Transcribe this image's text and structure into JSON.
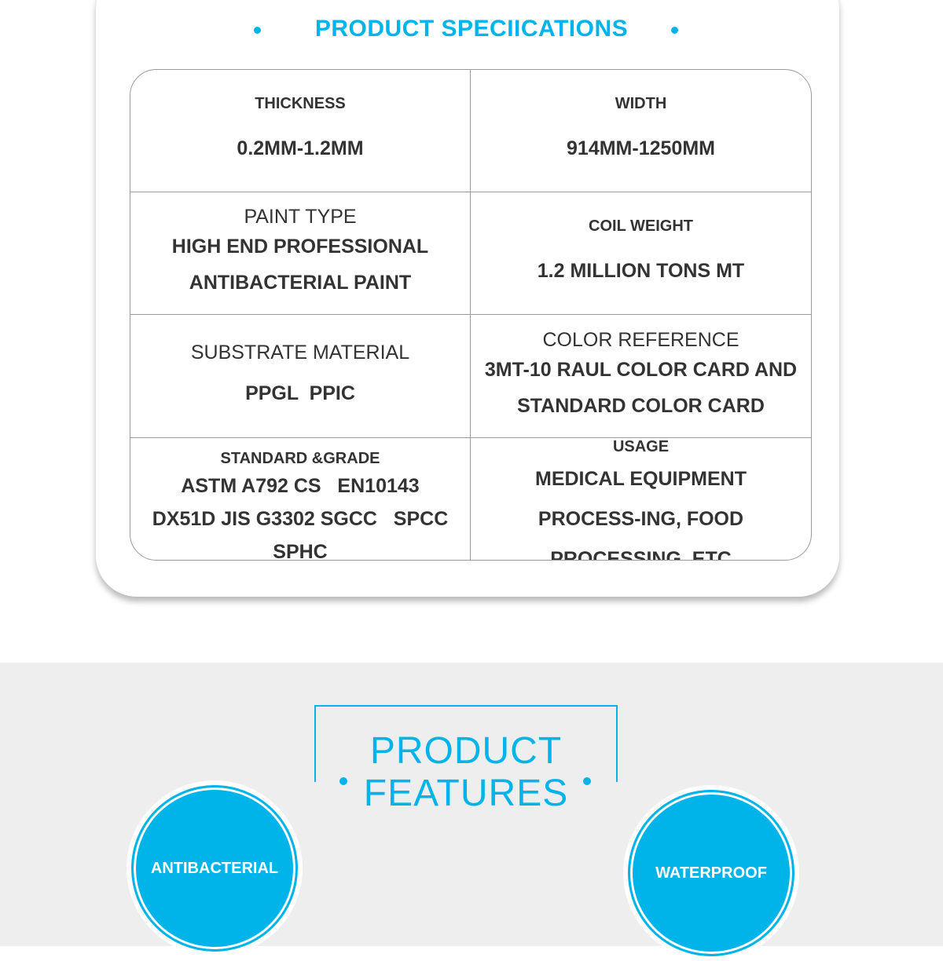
{
  "specs": {
    "title": "PRODUCT SPECIICATIONS",
    "cells": [
      {
        "label": "THICKNESS",
        "value": "0.2MM-1.2MM"
      },
      {
        "label": "WIDTH",
        "value": "914MM-1250MM"
      },
      {
        "label": "PAINT TYPE",
        "value": "HIGH END PROFESSIONAL ANTIBACTERIAL PAINT"
      },
      {
        "label": "COIL WEIGHT",
        "value": "1.2 MILLION TONS MT"
      },
      {
        "label": "SUBSTRATE MATERIAL",
        "value": "PPGL  PPIC"
      },
      {
        "label": "COLOR REFERENCE",
        "value": "3MT-10 RAUL COLOR CARD AND STANDARD COLOR CARD"
      },
      {
        "label": "STANDARD &GRADE",
        "value": "ASTM A792 CS   EN10143 DX51D JIS G3302 SGCC   SPCC SPHC"
      },
      {
        "label": "USAGE",
        "value": "MEDICAL EQUIPMENT PROCESS-ING, FOOD PROCESSING, ETC"
      }
    ]
  },
  "features": {
    "title_line1": "PRODUCT",
    "title_line2": "FEATURES",
    "items": [
      "ANTIBACTERIAL",
      "WATERPROOF"
    ]
  },
  "colors": {
    "accent": "#00b4ea",
    "section_bg": "#eeeeee"
  }
}
